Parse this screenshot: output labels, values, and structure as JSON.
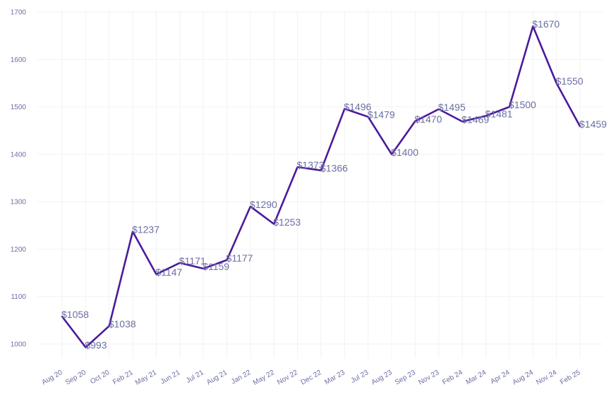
{
  "chart_data": {
    "type": "line",
    "title": "",
    "xlabel": "",
    "ylabel": "",
    "ylim": [
      950,
      1700
    ],
    "yticks": [
      1000,
      1100,
      1200,
      1300,
      1400,
      1500,
      1600,
      1700
    ],
    "grid": true,
    "legend": "none",
    "line_color": "#4b1a9c",
    "label_color": "#6b6fa3",
    "categories": [
      "Aug 20",
      "Sep 20",
      "Oct 20",
      "Feb 21",
      "May 21",
      "Jun 21",
      "Jul 21",
      "Aug 21",
      "Jan 22",
      "May 22",
      "Nov 22",
      "Dec 22",
      "Mar 23",
      "Jul 23",
      "Aug 23",
      "Sep 23",
      "Nov 23",
      "Feb 24",
      "Mar 24",
      "Apr 24",
      "Aug 24",
      "Nov 24",
      "Feb 25"
    ],
    "values": [
      1058,
      993,
      1038,
      1237,
      1147,
      1171,
      1159,
      1177,
      1290,
      1253,
      1373,
      1366,
      1496,
      1479,
      1400,
      1470,
      1495,
      1469,
      1481,
      1500,
      1670,
      1550,
      1459
    ],
    "data_labels": [
      "$1058",
      "$993",
      "$1038",
      "$1237",
      "$1147",
      "$1171",
      "$1159",
      "$1177",
      "$1290",
      "$1253",
      "$1373",
      "$1366",
      "$1496",
      "$1479",
      "$1400",
      "$1470",
      "$1495",
      "$1469",
      "$1481",
      "$1500",
      "$1670",
      "$1550",
      "$1459"
    ]
  }
}
